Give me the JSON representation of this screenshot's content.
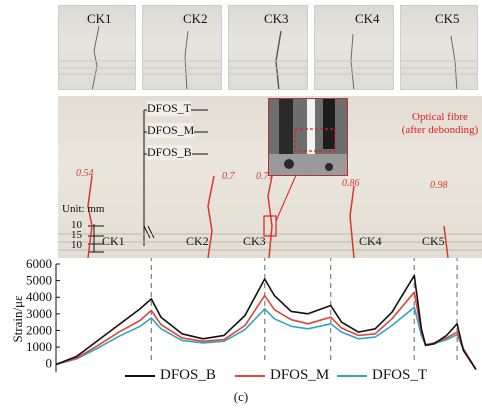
{
  "thumbnails": [
    {
      "label": "CK1"
    },
    {
      "label": "CK2"
    },
    {
      "label": "CK3"
    },
    {
      "label": "CK4"
    },
    {
      "label": "CK5"
    }
  ],
  "beam": {
    "fibre_labels": [
      "DFOS_T",
      "DFOS_M",
      "DFOS_B"
    ],
    "unit_label": "Unit: mm",
    "spacing_labels": [
      "10",
      "15",
      "10"
    ],
    "crack_labels": [
      "CK1",
      "CK2",
      "CK3",
      "CK4",
      "CK5"
    ],
    "crack_widths": [
      "0.54",
      "0.7",
      "0.77",
      "0.86",
      "0.98"
    ],
    "inset_annotation": "Optical fibre\n(after debonding)"
  },
  "chart_data": {
    "type": "line",
    "ylabel": "Strain/με",
    "ylim": [
      -500,
      6000
    ],
    "yticks": [
      "6000",
      "5000",
      "4000",
      "3000",
      "2000",
      "1000",
      "0"
    ],
    "ytick_values": [
      6000,
      5000,
      4000,
      3000,
      2000,
      1000,
      0
    ],
    "crack_positions": [
      0.227,
      0.497,
      0.654,
      0.853,
      0.955
    ],
    "series": [
      {
        "name": "DFOS_B",
        "color": "#111111",
        "x": [
          0,
          0.05,
          0.1,
          0.15,
          0.2,
          0.227,
          0.25,
          0.3,
          0.35,
          0.4,
          0.45,
          0.497,
          0.52,
          0.56,
          0.6,
          0.654,
          0.68,
          0.72,
          0.76,
          0.8,
          0.853,
          0.87,
          0.88,
          0.9,
          0.93,
          0.955,
          0.97,
          1.0
        ],
        "y": [
          -50,
          450,
          1400,
          2350,
          3300,
          3900,
          2800,
          1800,
          1500,
          1700,
          2900,
          5100,
          4100,
          3150,
          3000,
          3500,
          2500,
          1900,
          2100,
          3100,
          5300,
          2100,
          1100,
          1200,
          1700,
          2400,
          800,
          -350
        ]
      },
      {
        "name": "DFOS_M",
        "color": "#e0453a",
        "x": [
          0,
          0.05,
          0.1,
          0.15,
          0.2,
          0.227,
          0.25,
          0.3,
          0.35,
          0.4,
          0.45,
          0.497,
          0.52,
          0.56,
          0.6,
          0.654,
          0.68,
          0.72,
          0.76,
          0.8,
          0.853,
          0.87,
          0.88,
          0.9,
          0.93,
          0.955,
          0.97,
          1.0
        ],
        "y": [
          -50,
          350,
          1100,
          1900,
          2600,
          3200,
          2350,
          1550,
          1350,
          1450,
          2300,
          4100,
          3250,
          2650,
          2400,
          2800,
          2150,
          1700,
          1800,
          2700,
          4300,
          1900,
          1150,
          1250,
          1550,
          1900,
          900,
          -350
        ]
      },
      {
        "name": "DFOS_T",
        "color": "#2fa5c5",
        "x": [
          0,
          0.05,
          0.1,
          0.15,
          0.2,
          0.227,
          0.25,
          0.3,
          0.35,
          0.4,
          0.45,
          0.497,
          0.52,
          0.56,
          0.6,
          0.654,
          0.68,
          0.72,
          0.76,
          0.8,
          0.853,
          0.87,
          0.88,
          0.9,
          0.93,
          0.955,
          0.97,
          1.0
        ],
        "y": [
          -50,
          300,
          950,
          1650,
          2250,
          2750,
          2100,
          1400,
          1250,
          1350,
          2050,
          3300,
          2700,
          2250,
          2100,
          2400,
          1900,
          1500,
          1600,
          2300,
          3400,
          1700,
          1100,
          1200,
          1450,
          1750,
          850,
          -350
        ]
      }
    ]
  },
  "caption": "(c)"
}
